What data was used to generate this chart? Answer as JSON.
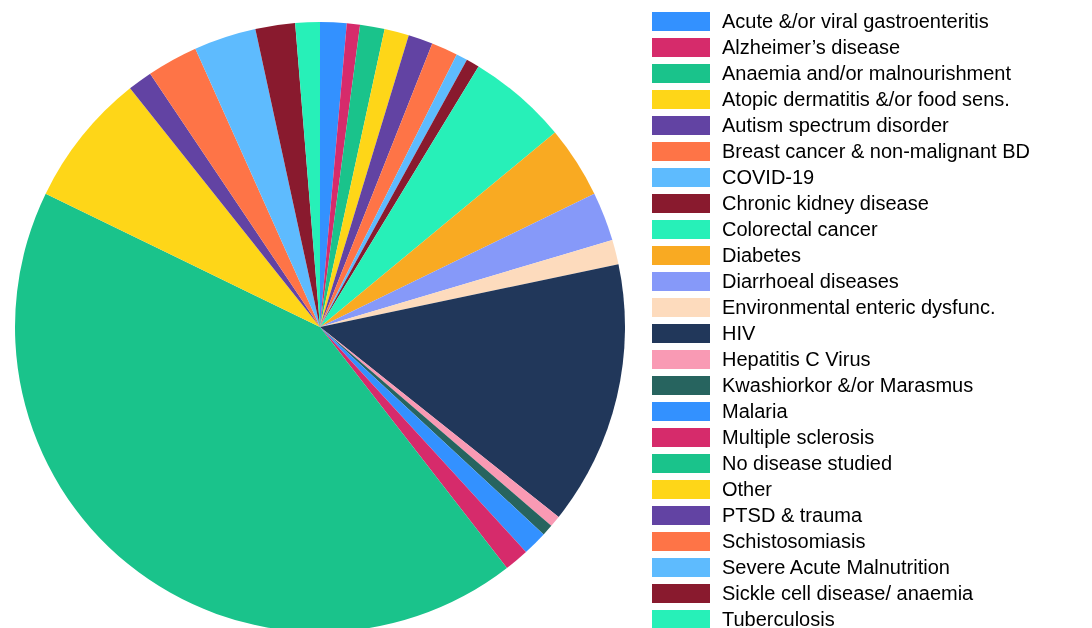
{
  "chart_data": {
    "type": "pie",
    "legend": "right",
    "categories": [
      "Acute &/or viral gastroenteritis",
      "Alzheimer’s disease",
      "Anaemia and/or malnourishment",
      "Atopic dermatitis &/or food sens.",
      "Autism spectrum disorder",
      "Breast cancer & non-malignant BD",
      "COVID-19",
      "Chronic kidney disease",
      "Colorectal cancer",
      "Diabetes",
      "Diarrhoeal diseases",
      "Environmental enteric dysfunc.",
      "HIV",
      "Hepatitis C Virus",
      "Kwashiorkor &/or Marasmus",
      "Malaria",
      "Multiple sclerosis",
      "No disease studied",
      "Other",
      "PTSD & trauma",
      "Schistosomiasis",
      "Severe Acute Malnutrition",
      "Sickle cell disease/ anaemia",
      "Tuberculosis"
    ],
    "values": [
      1.4,
      0.7,
      1.3,
      1.3,
      1.3,
      1.4,
      0.6,
      0.7,
      5.3,
      3.8,
      2.6,
      1.3,
      14.0,
      0.6,
      0.6,
      1.3,
      1.3,
      42.7,
      7.1,
      1.3,
      2.7,
      3.3,
      2.1,
      1.3
    ],
    "colors": [
      "#3391ff",
      "#d62b6b",
      "#1ac38b",
      "#fed618",
      "#6243a3",
      "#fe7447",
      "#5ebbfe",
      "#891a2e",
      "#27f0b8",
      "#f9aa22",
      "#8699f9",
      "#fddbbd",
      "#21375a",
      "#f99ab4",
      "#27645f",
      "#3391ff",
      "#d62b6b",
      "#1ac38b",
      "#fed618",
      "#6243a3",
      "#fe7447",
      "#5ebbfe",
      "#891a2e",
      "#27f0b8"
    ]
  }
}
